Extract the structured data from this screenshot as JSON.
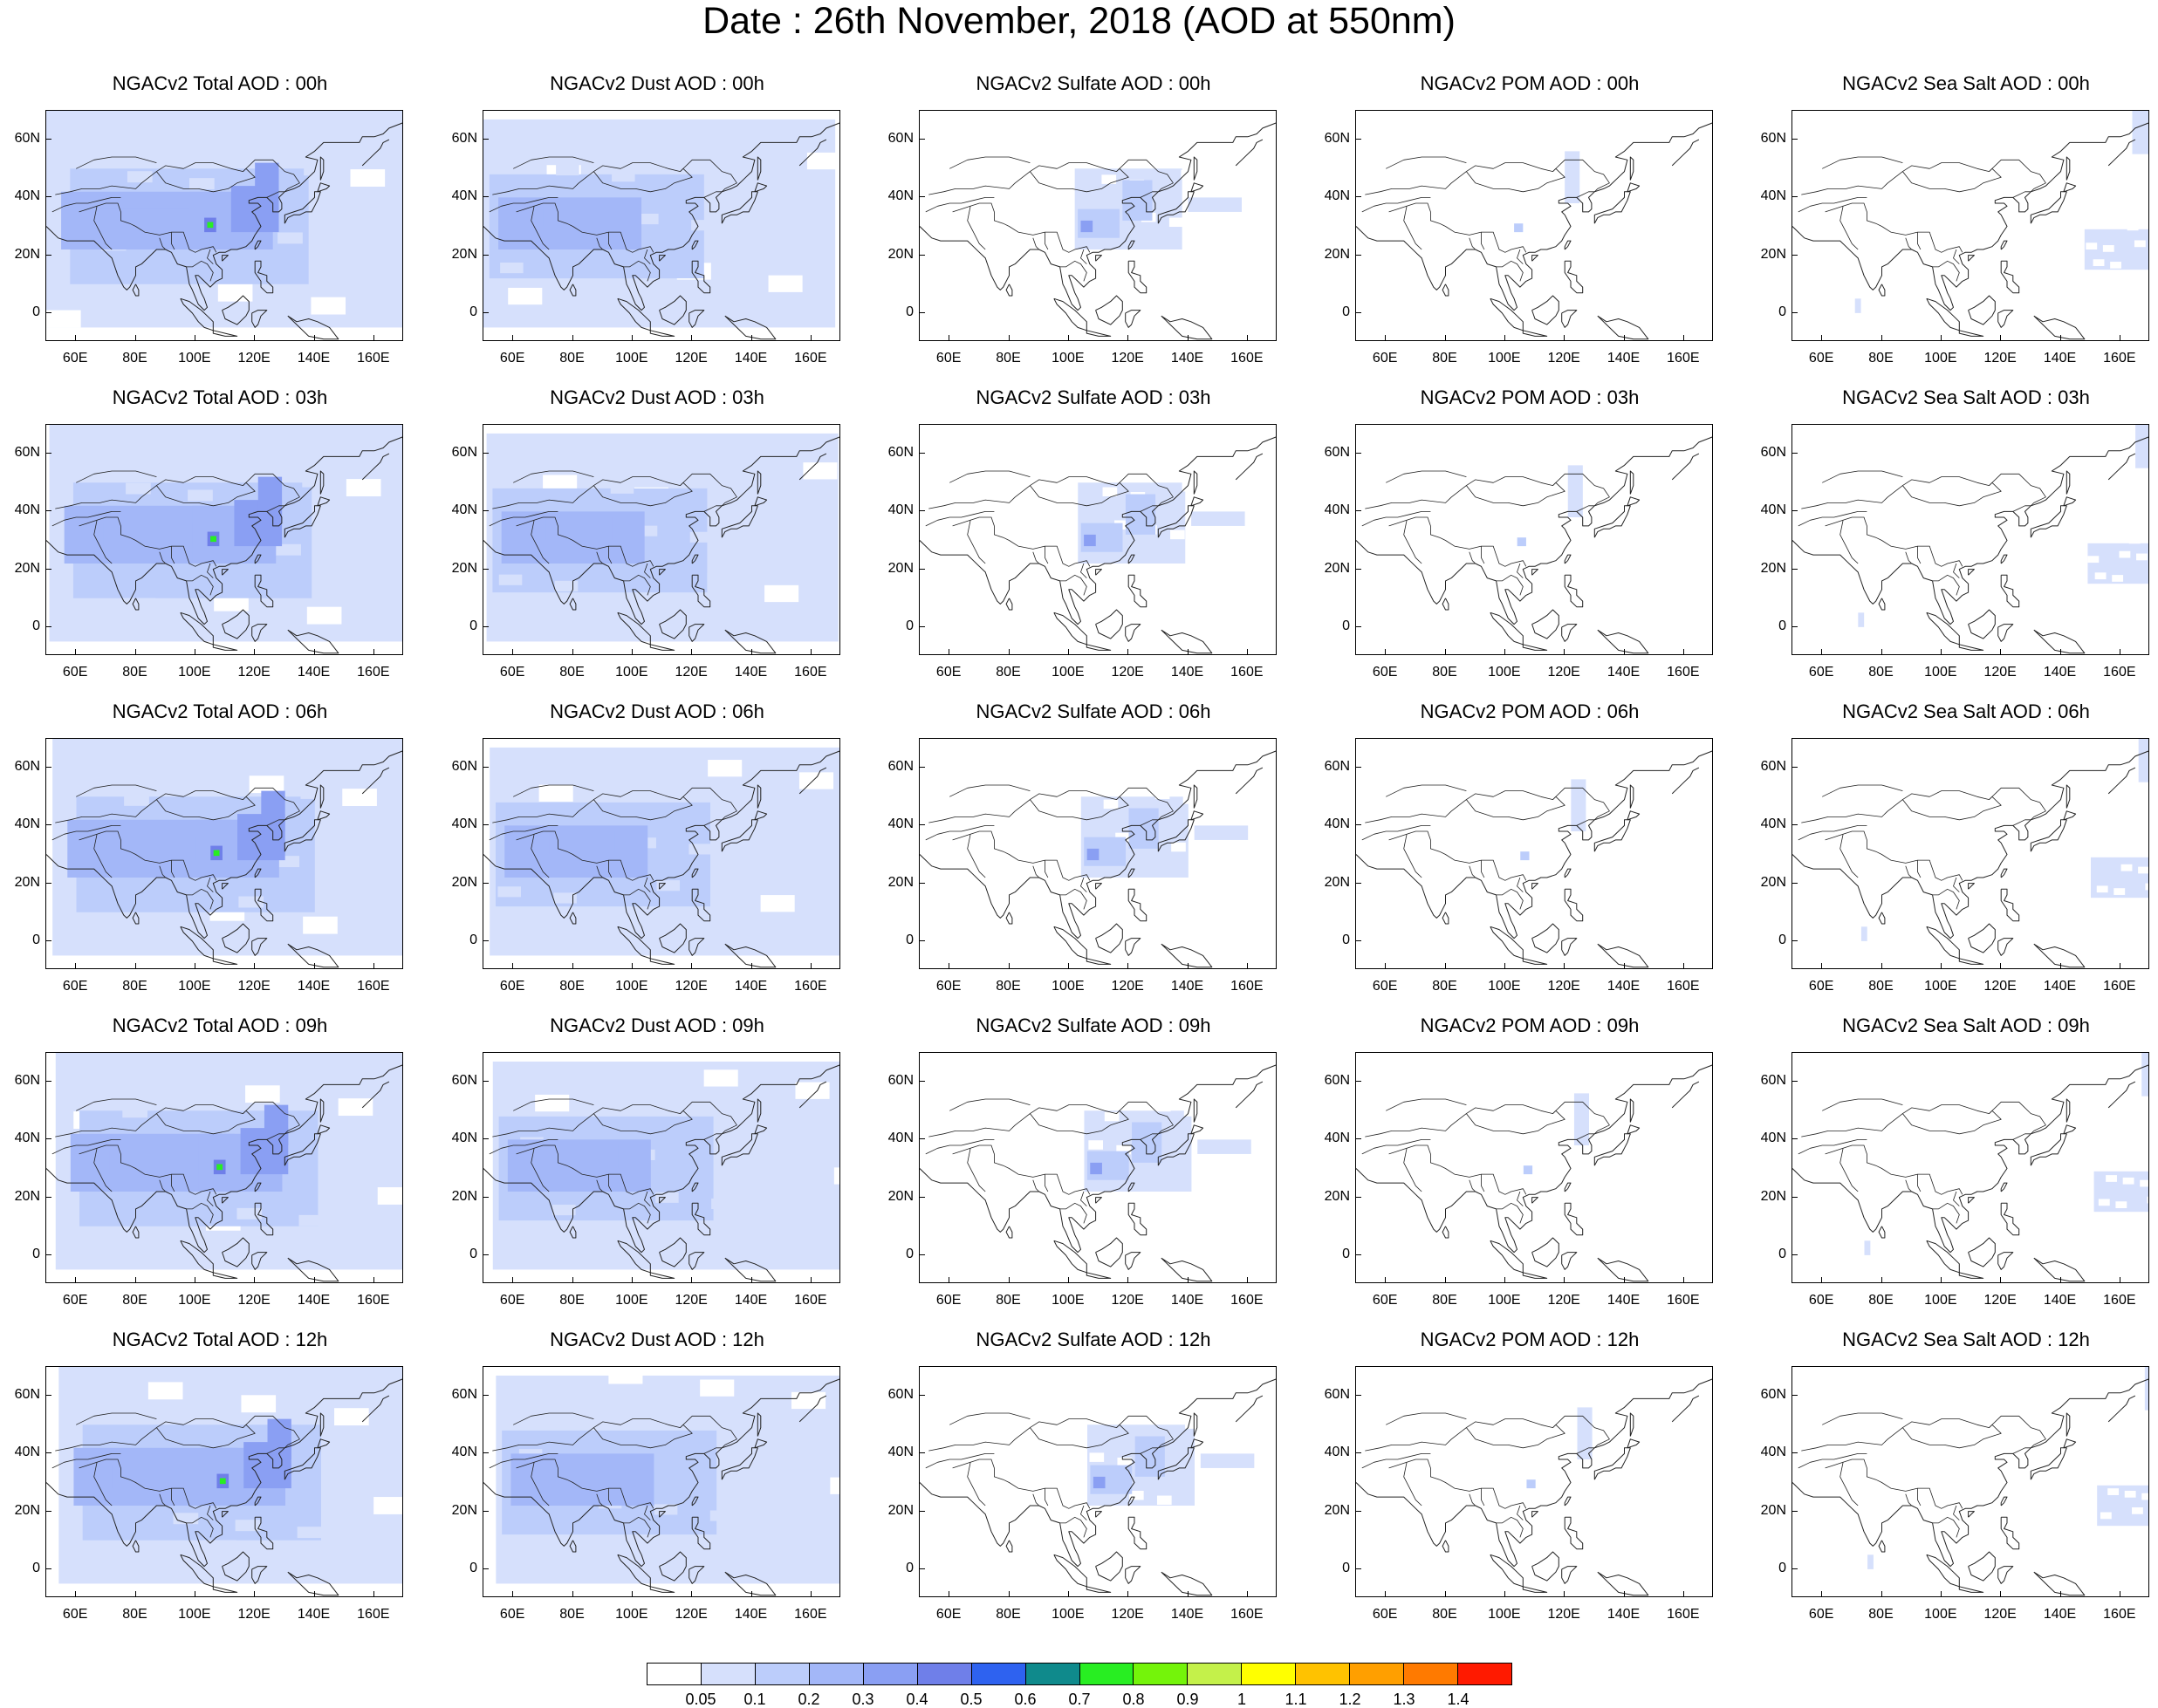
{
  "title": "Date : 26th November, 2018 (AOD at 550nm)",
  "lat_ticks": [
    "60N",
    "40N",
    "20N",
    "0"
  ],
  "lat_values": [
    60,
    40,
    20,
    0
  ],
  "lon_ticks": [
    "60E",
    "80E",
    "100E",
    "120E",
    "140E",
    "160E"
  ],
  "lon_values": [
    60,
    80,
    100,
    120,
    140,
    160
  ],
  "extent": {
    "lon": [
      50,
      170
    ],
    "lat": [
      -10,
      70
    ]
  },
  "panels": [
    {
      "title": "NGACv2 Total AOD : 00h",
      "species": "total",
      "hour": 0
    },
    {
      "title": "NGACv2 Dust AOD : 00h",
      "species": "dust",
      "hour": 0
    },
    {
      "title": "NGACv2 Sulfate AOD : 00h",
      "species": "sulfate",
      "hour": 0
    },
    {
      "title": "NGACv2 POM AOD : 00h",
      "species": "pom",
      "hour": 0
    },
    {
      "title": "NGACv2 Sea Salt AOD : 00h",
      "species": "seasalt",
      "hour": 0
    },
    {
      "title": "NGACv2 Total AOD : 03h",
      "species": "total",
      "hour": 3
    },
    {
      "title": "NGACv2 Dust AOD : 03h",
      "species": "dust",
      "hour": 3
    },
    {
      "title": "NGACv2 Sulfate AOD : 03h",
      "species": "sulfate",
      "hour": 3
    },
    {
      "title": "NGACv2 POM AOD : 03h",
      "species": "pom",
      "hour": 3
    },
    {
      "title": "NGACv2 Sea Salt AOD : 03h",
      "species": "seasalt",
      "hour": 3
    },
    {
      "title": "NGACv2 Total AOD : 06h",
      "species": "total",
      "hour": 6
    },
    {
      "title": "NGACv2 Dust AOD : 06h",
      "species": "dust",
      "hour": 6
    },
    {
      "title": "NGACv2 Sulfate AOD : 06h",
      "species": "sulfate",
      "hour": 6
    },
    {
      "title": "NGACv2 POM AOD : 06h",
      "species": "pom",
      "hour": 6
    },
    {
      "title": "NGACv2 Sea Salt AOD : 06h",
      "species": "seasalt",
      "hour": 6
    },
    {
      "title": "NGACv2 Total AOD : 09h",
      "species": "total",
      "hour": 9
    },
    {
      "title": "NGACv2 Dust AOD : 09h",
      "species": "dust",
      "hour": 9
    },
    {
      "title": "NGACv2 Sulfate AOD : 09h",
      "species": "sulfate",
      "hour": 9
    },
    {
      "title": "NGACv2 POM AOD : 09h",
      "species": "pom",
      "hour": 9
    },
    {
      "title": "NGACv2 Sea Salt  AOD : 09h",
      "species": "seasalt",
      "hour": 9
    },
    {
      "title": "NGACv2 Total AOD  : 12h",
      "species": "total",
      "hour": 12
    },
    {
      "title": "NGACv2 Dust AOD : 12h",
      "species": "dust",
      "hour": 12
    },
    {
      "title": "NGACv2 Sulfate AOD : 12h",
      "species": "sulfate",
      "hour": 12
    },
    {
      "title": "NGACv2 POM  AOD : 12h",
      "species": "pom",
      "hour": 12
    },
    {
      "title": "NGACv2 Sea Salt  AOD : 12h",
      "species": "seasalt",
      "hour": 12
    }
  ],
  "colorbar": {
    "labels": [
      "0.05",
      "0.1",
      "0.2",
      "0.3",
      "0.4",
      "0.5",
      "0.6",
      "0.7",
      "0.8",
      "0.9",
      "1",
      "1.1",
      "1.2",
      "1.3",
      "1.4"
    ],
    "colors": [
      "#ffffff",
      "#d6e0fc",
      "#bccdfb",
      "#a3b7f8",
      "#8a9ff3",
      "#6f7fe9",
      "#2e62f0",
      "#0f8a8c",
      "#28ee22",
      "#74f40a",
      "#c4f14a",
      "#ffff00",
      "#ffc200",
      "#ff9f00",
      "#ff7a00",
      "#ff1a00"
    ]
  }
}
